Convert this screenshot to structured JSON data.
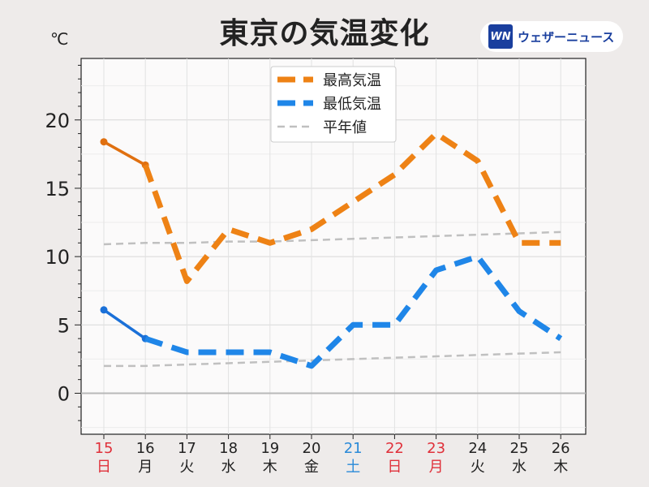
{
  "header": {
    "title": "東京の気温変化",
    "unit": "℃"
  },
  "brand": {
    "logo_text": "WN",
    "name": "ウェザーニュース",
    "color": "#1a3f9e"
  },
  "chart_data": {
    "type": "line",
    "title": "東京の気温変化",
    "ylabel": "℃",
    "ylim": [
      -3,
      24.5
    ],
    "yticks": [
      0,
      5,
      10,
      15,
      20
    ],
    "grid": true,
    "legend_position": "top-center",
    "categories": [
      "15",
      "16",
      "17",
      "18",
      "19",
      "20",
      "21",
      "22",
      "23",
      "24",
      "25",
      "26"
    ],
    "weekdays": [
      "日",
      "月",
      "火",
      "水",
      "木",
      "金",
      "土",
      "日",
      "月",
      "火",
      "水",
      "木"
    ],
    "day_colors": [
      "#e0303a",
      "#222222",
      "#222222",
      "#222222",
      "#222222",
      "#222222",
      "#2a8ad8",
      "#e0303a",
      "#e0303a",
      "#222222",
      "#222222",
      "#222222"
    ],
    "series": [
      {
        "name": "最高気温",
        "color": "#ee8215",
        "observed_color": "#e07010",
        "values": [
          18.4,
          16.7,
          8.2,
          12,
          11,
          12,
          14,
          16,
          19,
          17,
          11,
          11
        ],
        "observed_until_index": 1
      },
      {
        "name": "最低気温",
        "color": "#1f86e8",
        "observed_color": "#1a70d8",
        "values": [
          6.1,
          4.0,
          3,
          3,
          3,
          2,
          5,
          5,
          9,
          10,
          6,
          4
        ],
        "observed_until_index": 1
      },
      {
        "name": "平年値",
        "color": "#c0c0c0",
        "values_high": [
          10.9,
          11.0,
          11.0,
          11.1,
          11.1,
          11.2,
          11.3,
          11.4,
          11.5,
          11.6,
          11.7,
          11.8
        ],
        "values_low": [
          2.0,
          2.0,
          2.1,
          2.2,
          2.3,
          2.4,
          2.5,
          2.6,
          2.7,
          2.8,
          2.9,
          3.0
        ]
      }
    ]
  }
}
